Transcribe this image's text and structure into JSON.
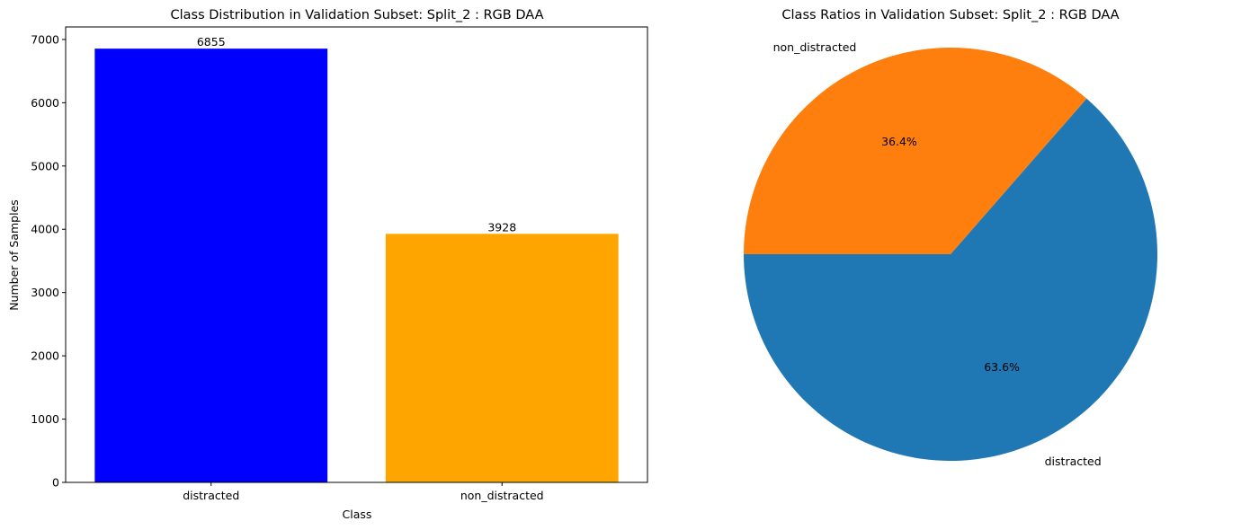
{
  "chart_data": [
    {
      "type": "bar",
      "title": "Class Distribution in Validation Subset: Split_2 : RGB DAA",
      "xlabel": "Class",
      "ylabel": "Number of Samples",
      "categories": [
        "distracted",
        "non_distracted"
      ],
      "values": [
        6855,
        3928
      ],
      "value_labels": [
        "6855",
        "3928"
      ],
      "colors": [
        "#0000ff",
        "#ffa500"
      ],
      "ylim": [
        0,
        7197.75
      ],
      "yticks": [
        0,
        1000,
        2000,
        3000,
        4000,
        5000,
        6000,
        7000
      ],
      "ytick_labels": [
        "0",
        "1000",
        "2000",
        "3000",
        "4000",
        "5000",
        "6000",
        "7000"
      ],
      "grid": false
    },
    {
      "type": "pie",
      "title": "Class Ratios in Validation Subset: Split_2 : RGB DAA",
      "labels": [
        "distracted",
        "non_distracted"
      ],
      "values": [
        6855,
        3928
      ],
      "percent_labels": [
        "63.6%",
        "36.4%"
      ],
      "colors": [
        "#1f77b4",
        "#ff7f0e"
      ],
      "start_angle_deg": 180,
      "direction": "counterclockwise"
    }
  ]
}
